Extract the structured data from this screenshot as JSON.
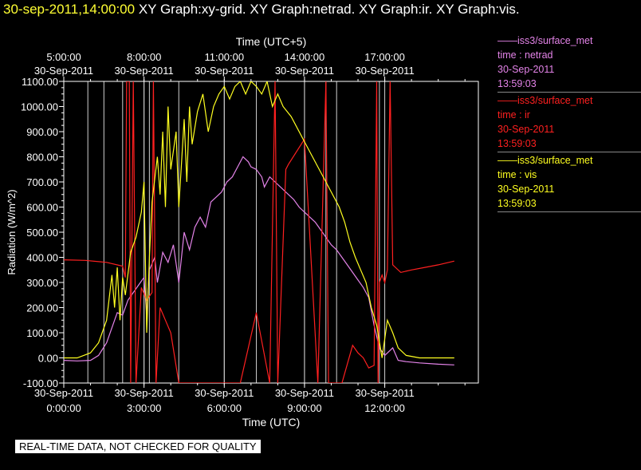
{
  "header": {
    "timestamp": "30-sep-2011,14:00:00",
    "graphs": "XY Graph:xy-grid.  XY Graph:netrad.  XY Graph:ir.  XY Graph:vis."
  },
  "footer_note": "REAL-TIME DATA, NOT CHECKED FOR QUALITY",
  "legend": [
    {
      "source": "iss3/surface_met",
      "label": "time : netrad",
      "date": "30-Sep-2011",
      "time": "13:59:03",
      "color": "#e383e8"
    },
    {
      "source": "iss3/surface_met",
      "label": "time : ir",
      "date": "30-Sep-2011",
      "time": "13:59:03",
      "color": "#ff2020"
    },
    {
      "source": "iss3/surface_met",
      "label": "time : vis",
      "date": "30-Sep-2011",
      "time": "13:59:03",
      "color": "#ffff20"
    }
  ],
  "chart_data": {
    "type": "line",
    "xlabel": "Time (UTC)",
    "x2label": "Time (UTC+5)",
    "ylabel": "Radiation (W/m^2)",
    "xlim": [
      0,
      15.5
    ],
    "ylim": [
      -100,
      1100
    ],
    "yticks": [
      "-100.00",
      "0.00",
      "100.00",
      "200.00",
      "300.00",
      "400.00",
      "500.00",
      "600.00",
      "700.00",
      "800.00",
      "900.00",
      "1000.00",
      "1100.00"
    ],
    "xticks": [
      {
        "x": 0,
        "date": "30-Sep-2011",
        "time": "0:00:00"
      },
      {
        "x": 3,
        "date": "30-Sep-2011",
        "time": "3:00:00"
      },
      {
        "x": 6,
        "date": "30-Sep-2011",
        "time": "6:00:00"
      },
      {
        "x": 9,
        "date": "30-Sep-2011",
        "time": "9:00:00"
      },
      {
        "x": 12,
        "date": "30-Sep-2011",
        "time": "12:00:00"
      }
    ],
    "x2ticks": [
      {
        "x": 0,
        "time": "5:00:00",
        "date": "30-Sep-2011"
      },
      {
        "x": 3,
        "time": "8:00:00",
        "date": "30-Sep-2011"
      },
      {
        "x": 6,
        "time": "11:00:00",
        "date": "30-Sep-2011"
      },
      {
        "x": 9,
        "time": "14:00:00",
        "date": "30-Sep-2011"
      },
      {
        "x": 12,
        "time": "17:00:00",
        "date": "30-Sep-2011"
      }
    ],
    "grid_x": [
      0.9,
      1.5,
      2.2,
      3.0,
      3.2,
      4.3,
      6.0,
      7.2,
      9.0,
      9.8,
      10.2,
      11.8
    ],
    "series": [
      {
        "color": "#e383e8",
        "points": [
          [
            0,
            -10
          ],
          [
            0.5,
            -12
          ],
          [
            1.0,
            -10
          ],
          [
            1.3,
            10
          ],
          [
            1.6,
            60
          ],
          [
            1.9,
            150
          ],
          [
            2.0,
            180
          ],
          [
            2.2,
            170
          ],
          [
            2.4,
            230
          ],
          [
            2.6,
            260
          ],
          [
            2.8,
            290
          ],
          [
            3.0,
            320
          ],
          [
            3.1,
            170
          ],
          [
            3.2,
            350
          ],
          [
            3.4,
            400
          ],
          [
            3.5,
            300
          ],
          [
            3.7,
            420
          ],
          [
            3.9,
            380
          ],
          [
            4.1,
            450
          ],
          [
            4.3,
            300
          ],
          [
            4.5,
            500
          ],
          [
            4.7,
            430
          ],
          [
            4.9,
            520
          ],
          [
            5.1,
            560
          ],
          [
            5.3,
            520
          ],
          [
            5.5,
            620
          ],
          [
            5.7,
            640
          ],
          [
            5.9,
            660
          ],
          [
            6.1,
            700
          ],
          [
            6.3,
            720
          ],
          [
            6.5,
            760
          ],
          [
            6.7,
            800
          ],
          [
            6.9,
            780
          ],
          [
            7.0,
            760
          ],
          [
            7.2,
            750
          ],
          [
            7.4,
            720
          ],
          [
            7.5,
            680
          ],
          [
            7.7,
            720
          ],
          [
            7.9,
            700
          ],
          [
            8.1,
            680
          ],
          [
            8.4,
            650
          ],
          [
            8.6,
            630
          ],
          [
            8.8,
            600
          ],
          [
            9.0,
            580
          ],
          [
            9.2,
            560
          ],
          [
            9.4,
            540
          ],
          [
            9.6,
            510
          ],
          [
            9.8,
            480
          ],
          [
            10.0,
            450
          ],
          [
            10.2,
            430
          ],
          [
            10.4,
            400
          ],
          [
            10.6,
            370
          ],
          [
            10.8,
            340
          ],
          [
            11.0,
            310
          ],
          [
            11.2,
            280
          ],
          [
            11.4,
            240
          ],
          [
            11.6,
            130
          ],
          [
            11.8,
            40
          ],
          [
            12.0,
            10
          ],
          [
            12.3,
            40
          ],
          [
            12.5,
            -10
          ],
          [
            12.8,
            -15
          ],
          [
            13.3,
            -20
          ],
          [
            14.0,
            -25
          ],
          [
            14.6,
            -28
          ]
        ]
      },
      {
        "color": "#ff2020",
        "points": [
          [
            0,
            390
          ],
          [
            0.8,
            388
          ],
          [
            1.6,
            380
          ],
          [
            2.2,
            365
          ],
          [
            2.3,
            320
          ],
          [
            2.35,
            1100
          ],
          [
            2.45,
            1100
          ],
          [
            2.5,
            -100
          ],
          [
            2.6,
            1100
          ],
          [
            2.7,
            -100
          ],
          [
            2.9,
            280
          ],
          [
            3.1,
            230
          ],
          [
            3.3,
            260
          ],
          [
            3.35,
            1100
          ],
          [
            3.45,
            -100
          ],
          [
            3.6,
            200
          ],
          [
            3.8,
            150
          ],
          [
            4.0,
            100
          ],
          [
            4.3,
            -100
          ],
          [
            6.6,
            -100
          ],
          [
            7.2,
            180
          ],
          [
            7.7,
            -100
          ],
          [
            7.9,
            1100
          ],
          [
            8.0,
            -100
          ],
          [
            8.3,
            750
          ],
          [
            8.4,
            770
          ],
          [
            9.0,
            870
          ],
          [
            9.5,
            -100
          ],
          [
            9.8,
            1100
          ],
          [
            9.9,
            -100
          ],
          [
            10.4,
            -100
          ],
          [
            10.8,
            50
          ],
          [
            11.0,
            20
          ],
          [
            11.2,
            0
          ],
          [
            11.4,
            -40
          ],
          [
            11.6,
            -30
          ],
          [
            11.7,
            1100
          ],
          [
            11.75,
            -100
          ],
          [
            11.8,
            300
          ],
          [
            11.9,
            330
          ],
          [
            12.0,
            300
          ],
          [
            12.1,
            350
          ],
          [
            12.2,
            1100
          ],
          [
            12.3,
            370
          ],
          [
            12.6,
            340
          ],
          [
            13.0,
            350
          ],
          [
            13.5,
            360
          ],
          [
            14.0,
            370
          ],
          [
            14.6,
            385
          ]
        ]
      },
      {
        "color": "#ffff20",
        "points": [
          [
            0,
            0
          ],
          [
            0.5,
            0
          ],
          [
            1.0,
            20
          ],
          [
            1.3,
            60
          ],
          [
            1.6,
            150
          ],
          [
            1.8,
            330
          ],
          [
            1.9,
            200
          ],
          [
            2.0,
            360
          ],
          [
            2.1,
            150
          ],
          [
            2.2,
            320
          ],
          [
            2.3,
            250
          ],
          [
            2.5,
            420
          ],
          [
            2.7,
            480
          ],
          [
            2.9,
            580
          ],
          [
            3.0,
            700
          ],
          [
            3.1,
            100
          ],
          [
            3.2,
            400
          ],
          [
            3.3,
            620
          ],
          [
            3.5,
            800
          ],
          [
            3.6,
            650
          ],
          [
            3.7,
            900
          ],
          [
            3.8,
            600
          ],
          [
            3.9,
            1000
          ],
          [
            4.0,
            750
          ],
          [
            4.2,
            900
          ],
          [
            4.3,
            600
          ],
          [
            4.5,
            950
          ],
          [
            4.6,
            700
          ],
          [
            4.7,
            1000
          ],
          [
            4.8,
            850
          ],
          [
            5.0,
            980
          ],
          [
            5.2,
            1050
          ],
          [
            5.4,
            900
          ],
          [
            5.6,
            1000
          ],
          [
            5.8,
            1050
          ],
          [
            6.0,
            1080
          ],
          [
            6.2,
            1030
          ],
          [
            6.4,
            1080
          ],
          [
            6.6,
            1100
          ],
          [
            6.8,
            1050
          ],
          [
            7.0,
            1100
          ],
          [
            7.2,
            1080
          ],
          [
            7.4,
            1050
          ],
          [
            7.6,
            1100
          ],
          [
            7.8,
            1000
          ],
          [
            8.0,
            1050
          ],
          [
            8.2,
            1000
          ],
          [
            8.5,
            960
          ],
          [
            9.0,
            860
          ],
          [
            9.5,
            760
          ],
          [
            10.0,
            660
          ],
          [
            10.3,
            600
          ],
          [
            10.5,
            540
          ],
          [
            10.7,
            460
          ],
          [
            10.9,
            400
          ],
          [
            11.1,
            350
          ],
          [
            11.3,
            300
          ],
          [
            11.5,
            200
          ],
          [
            11.7,
            130
          ],
          [
            11.9,
            0
          ],
          [
            12.1,
            150
          ],
          [
            12.3,
            100
          ],
          [
            12.5,
            40
          ],
          [
            12.8,
            10
          ],
          [
            13.3,
            0
          ],
          [
            14.0,
            0
          ],
          [
            14.6,
            0
          ]
        ]
      }
    ]
  }
}
